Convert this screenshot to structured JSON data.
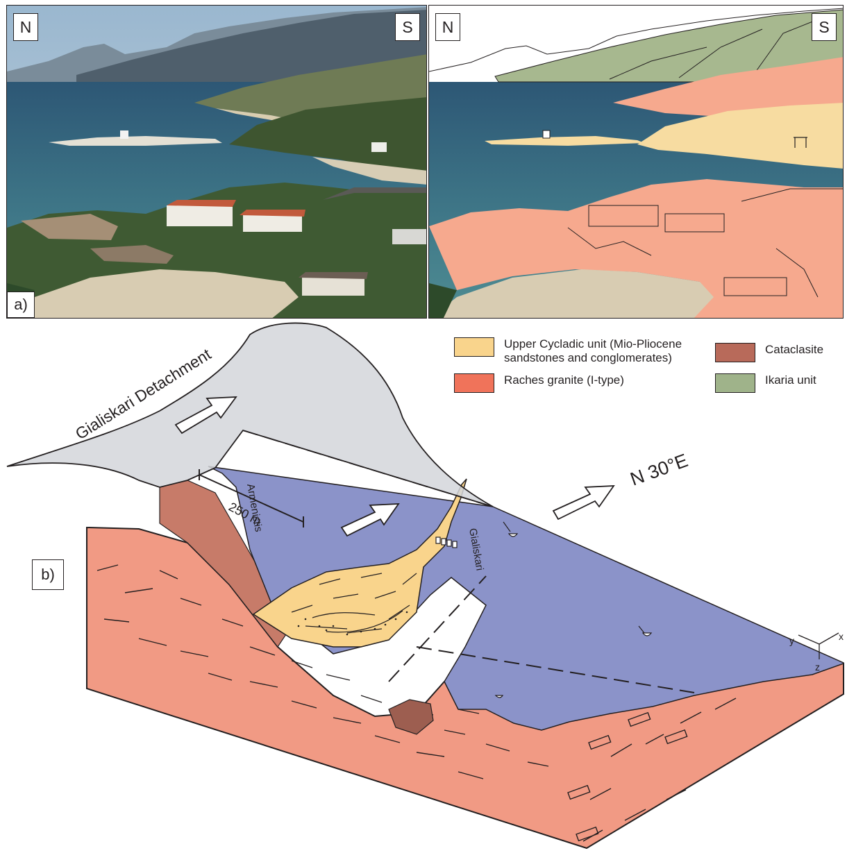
{
  "panel_a": {
    "compass_left": "N",
    "compass_right": "S",
    "label": "a)"
  },
  "panel_b": {
    "label": "b)",
    "detachment_label": "Gialiskari Detachment",
    "place_armenistis": "Armenistis",
    "place_gialiskari": "Gialiskari",
    "direction_label": "N 30°E",
    "scale_label": "250 m",
    "axis_x": "x",
    "axis_y": "y",
    "axis_z": "z"
  },
  "legend": [
    {
      "label": "Upper Cycladic unit (Mio-Pliocene sandstones and conglomerates)",
      "color": "#f9d48c"
    },
    {
      "label": "Raches granite (I-type)",
      "color": "#f0735a"
    },
    {
      "label": "Cataclasite",
      "color": "#b86a5a"
    },
    {
      "label": "Ikaria unit",
      "color": "#9fb38a"
    }
  ],
  "colors": {
    "sea_map": "#8b93c9",
    "detachment_sheet": "#d4d6da",
    "granite_block": "#f19a84",
    "granite_interp": "#f6a98e",
    "upper_cycladic_interp": "#f7dca1",
    "ikaria_interp": "#a7b88f"
  }
}
